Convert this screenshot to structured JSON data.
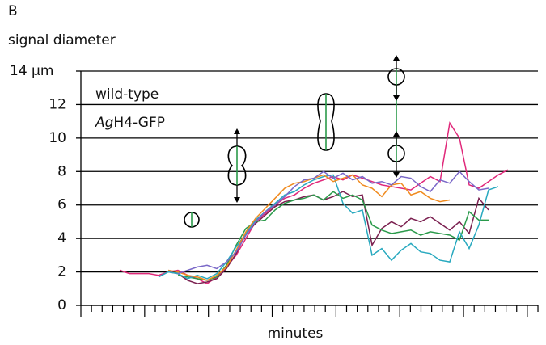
{
  "panel_label": "B",
  "chart_data": {
    "type": "line",
    "ylabel": "signal diameter",
    "xlabel": "minutes",
    "annotation": {
      "line1": "wild-type",
      "line2_italic": "Ag",
      "line2_rest": "H4-GFP"
    },
    "ylim": [
      0,
      14
    ],
    "yticks": [
      0,
      2,
      4,
      6,
      8,
      10,
      12,
      {
        "value": 14,
        "label": "14 μm"
      }
    ],
    "grid": true,
    "series": [
      {
        "color": "#e0287a",
        "values": [
          2.1,
          1.9,
          1.9,
          1.9,
          1.8,
          2.0,
          2.1,
          1.8,
          1.6,
          1.3,
          1.7,
          2.3,
          3.0,
          4.0,
          5.0,
          5.5,
          6.0,
          6.4,
          6.6,
          7.0,
          7.3,
          7.5,
          7.7,
          7.5,
          7.8,
          7.6,
          7.4,
          7.2,
          7.1,
          7.0,
          6.9,
          7.3,
          7.7,
          7.4,
          10.9,
          10.0,
          7.2,
          7.0,
          7.4,
          7.8,
          8.1
        ]
      },
      {
        "color": "#7b2050",
        "values": [
          null,
          null,
          null,
          null,
          null,
          2.0,
          1.9,
          1.5,
          1.3,
          1.4,
          1.6,
          2.2,
          3.1,
          4.3,
          4.9,
          5.4,
          5.9,
          6.2,
          6.3,
          6.5,
          6.6,
          6.3,
          6.5,
          6.8,
          6.5,
          6.6,
          3.6,
          4.6,
          5.0,
          4.7,
          5.2,
          5.0,
          5.3,
          4.9,
          4.5,
          5.0,
          4.3,
          6.4,
          5.7,
          null,
          null
        ]
      },
      {
        "color": "#2a9a4a",
        "values": [
          null,
          null,
          null,
          null,
          null,
          null,
          1.8,
          1.7,
          1.6,
          1.5,
          1.7,
          2.4,
          3.6,
          4.6,
          5.0,
          5.1,
          5.7,
          6.1,
          6.3,
          6.4,
          6.6,
          6.3,
          6.8,
          6.4,
          6.6,
          6.3,
          4.8,
          4.5,
          4.3,
          4.4,
          4.5,
          4.2,
          4.4,
          4.3,
          4.2,
          3.9,
          5.6,
          5.1,
          5.1,
          null,
          null
        ]
      },
      {
        "color": "#28a9bf",
        "values": [
          null,
          null,
          null,
          null,
          1.7,
          2.0,
          1.9,
          1.6,
          1.8,
          1.6,
          1.9,
          2.6,
          3.5,
          4.3,
          5.1,
          5.6,
          6.1,
          6.6,
          6.8,
          7.2,
          7.5,
          7.7,
          7.8,
          6.1,
          5.5,
          5.7,
          3.0,
          3.4,
          2.7,
          3.3,
          3.7,
          3.2,
          3.1,
          2.7,
          2.6,
          4.4,
          3.4,
          4.8,
          6.9,
          7.1,
          null
        ]
      },
      {
        "color": "#f08a1e",
        "values": [
          null,
          null,
          null,
          null,
          null,
          2.1,
          2.0,
          1.8,
          1.7,
          1.5,
          1.8,
          2.3,
          3.3,
          4.4,
          5.2,
          5.8,
          6.4,
          7.0,
          7.3,
          7.4,
          7.6,
          7.8,
          7.4,
          7.6,
          7.8,
          7.2,
          7.0,
          6.5,
          7.2,
          7.3,
          6.6,
          6.8,
          6.4,
          6.2,
          6.3,
          null,
          null,
          null,
          null,
          null,
          null
        ]
      },
      {
        "color": "#7a68c8",
        "values": [
          null,
          null,
          null,
          null,
          null,
          null,
          1.9,
          2.1,
          2.3,
          2.4,
          2.2,
          2.6,
          3.2,
          4.2,
          5.0,
          5.6,
          6.0,
          6.5,
          7.1,
          7.5,
          7.6,
          8.0,
          7.6,
          7.9,
          7.5,
          7.7,
          7.3,
          7.4,
          7.2,
          7.7,
          7.6,
          7.1,
          6.8,
          7.5,
          7.3,
          8.0,
          7.4,
          6.9,
          7.0,
          null,
          null
        ]
      }
    ]
  }
}
